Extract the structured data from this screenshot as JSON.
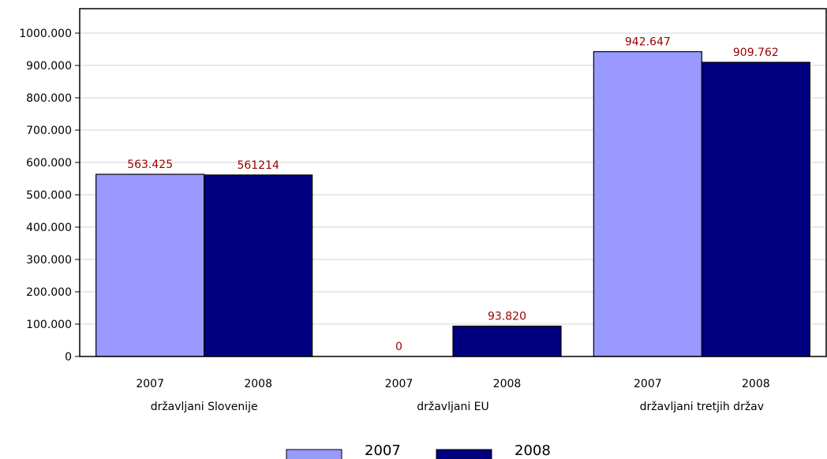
{
  "chart_data": {
    "type": "bar",
    "categories": [
      "državljani Slovenije",
      "državljani EU",
      "državljani tretjih držav"
    ],
    "sublabels": [
      "2007",
      "2008"
    ],
    "series": [
      {
        "name": "2007",
        "values": [
          563425,
          0,
          942647
        ],
        "labels": [
          "563.425",
          "0",
          "942.647"
        ],
        "color": "#9999ff"
      },
      {
        "name": "2008",
        "values": [
          561214,
          93820,
          909762
        ],
        "labels": [
          "561214",
          "93.820",
          "909.762"
        ],
        "color": "#000080"
      }
    ],
    "yticks": [
      "0",
      "100.000",
      "200.000",
      "300.000",
      "400.000",
      "500.000",
      "600.000",
      "700.000",
      "800.000",
      "900.000",
      "1000.000"
    ],
    "ylim": [
      0,
      1000000
    ],
    "grid": true,
    "legend_position": "bottom",
    "data_label_color": "#990000"
  }
}
